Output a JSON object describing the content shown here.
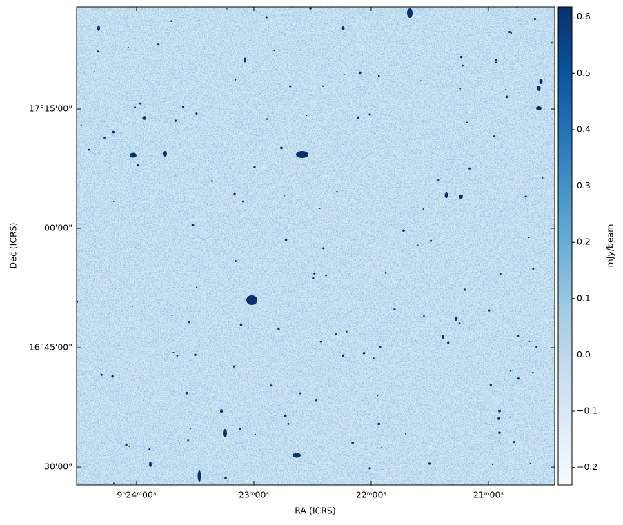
{
  "chart_data": {
    "type": "image",
    "xlabel": "RA (ICRS)",
    "ylabel": "Dec (ICRS)",
    "xlim": [
      33870.7,
      33626.1
    ],
    "xticks": [
      {
        "value": 33840,
        "label": "9ʰ24ᵐ00ˢ"
      },
      {
        "value": 33780,
        "label": "23ᵐ00ˢ"
      },
      {
        "value": 33720,
        "label": "22ᵐ00ˢ"
      },
      {
        "value": 33660,
        "label": "21ᵐ00ˢ"
      }
    ],
    "ylim": [
      987.75,
      1047.83
    ],
    "yticks": [
      {
        "value": 1035,
        "label": "17°15'00\""
      },
      {
        "value": 1020,
        "label": "00'00\""
      },
      {
        "value": 1005,
        "label": "16°45'00\""
      },
      {
        "value": 990,
        "label": "30'00\""
      }
    ],
    "colormap": "Blues",
    "colorbar": {
      "label": "mJy/beam",
      "clim": [
        -0.231,
        0.618
      ],
      "ticks": [
        {
          "value": -0.2,
          "label": "−0.2"
        },
        {
          "value": -0.1,
          "label": "−0.1"
        },
        {
          "value": 0,
          "label": "0.0"
        },
        0.1,
        0.2,
        0.3,
        0.4,
        0.5,
        0.6
      ]
    }
  }
}
